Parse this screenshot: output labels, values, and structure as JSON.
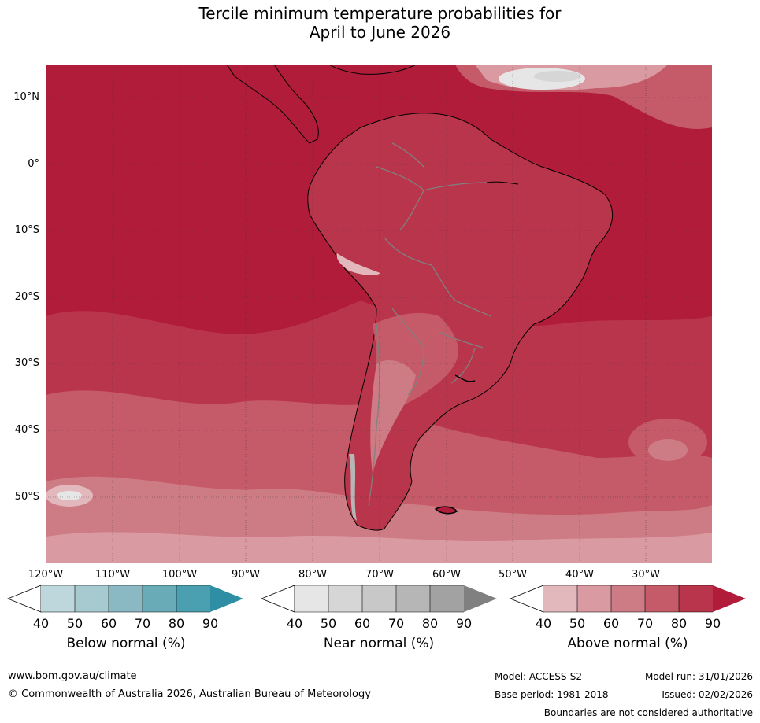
{
  "title_line1": "Tercile minimum temperature probabilities for",
  "title_line2": "April to June 2026",
  "lat_labels": [
    "10°N",
    "0°",
    "10°S",
    "20°S",
    "30°S",
    "40°S",
    "50°S"
  ],
  "lon_labels": [
    "120°W",
    "110°W",
    "100°W",
    "90°W",
    "80°W",
    "70°W",
    "60°W",
    "50°W",
    "40°W",
    "30°W"
  ],
  "colorbars": [
    {
      "label": "Below normal (%)",
      "ticks": [
        "40",
        "50",
        "60",
        "70",
        "80",
        "90"
      ],
      "colors": [
        "#ffffff",
        "#bdd7dc",
        "#a7cad0",
        "#8ab9c3",
        "#6aabb8",
        "#4a9fb1",
        "#2e8ea3"
      ]
    },
    {
      "label": "Near normal (%)",
      "ticks": [
        "40",
        "50",
        "60",
        "70",
        "80",
        "90"
      ],
      "colors": [
        "#ffffff",
        "#e6e6e6",
        "#d6d6d6",
        "#c8c8c8",
        "#b6b6b6",
        "#a2a2a2",
        "#808080"
      ]
    },
    {
      "label": "Above normal (%)",
      "ticks": [
        "40",
        "50",
        "60",
        "70",
        "80",
        "90"
      ],
      "colors": [
        "#ffffff",
        "#e3b8bd",
        "#d99aa1",
        "#cd7b85",
        "#c55a68",
        "#b9354b",
        "#b01c3a"
      ]
    }
  ],
  "footer": {
    "url": "www.bom.gov.au/climate",
    "copyright": "© Commonwealth of Australia 2026, Australian Bureau of Meteorology",
    "model": "Model: ACCESS-S2",
    "base_period": "Base period: 1981-2018",
    "model_run": "Model run: 31/01/2026",
    "issued": "Issued: 02/02/2026",
    "disclaimer": "Boundaries are not considered authoritative"
  },
  "colors": {
    "above90": "#b01c3a",
    "above80": "#b9354b",
    "above70": "#c55a68",
    "above60": "#cd7b85",
    "above50": "#d99aa1",
    "above40": "#e3b8bd",
    "near": "#d6d6d6"
  }
}
